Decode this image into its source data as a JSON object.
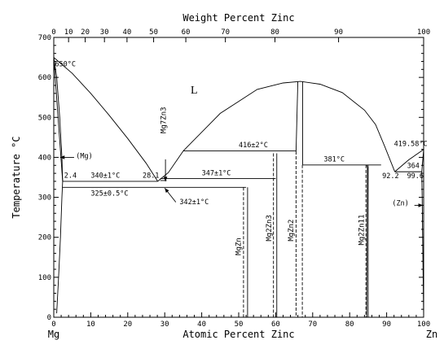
{
  "chart_data": {
    "type": "phase-diagram",
    "title_top": "Weight Percent Zinc",
    "xlabel": "Atomic Percent Zinc",
    "ylabel": "Temperature °C",
    "left_element": "Mg",
    "right_element": "Zn",
    "xlim": [
      0,
      100
    ],
    "ylim": [
      0,
      700
    ],
    "x_ticks": [
      "0",
      "10",
      "20",
      "30",
      "40",
      "50",
      "60",
      "70",
      "80",
      "90",
      "100"
    ],
    "y_ticks": [
      "0",
      "100",
      "200",
      "300",
      "400",
      "500",
      "600",
      "700"
    ],
    "top_ticks": [
      {
        "label": "0",
        "at": 0
      },
      {
        "label": "10",
        "at": 4
      },
      {
        "label": "20",
        "at": 8.5
      },
      {
        "label": "30",
        "at": 13.7
      },
      {
        "label": "40",
        "at": 19.8
      },
      {
        "label": "50",
        "at": 27
      },
      {
        "label": "60",
        "at": 35.7
      },
      {
        "label": "70",
        "at": 46.4
      },
      {
        "label": "80",
        "at": 59.8
      },
      {
        "label": "90",
        "at": 77
      },
      {
        "label": "100",
        "at": 100
      }
    ],
    "curves": [
      {
        "name": "liquidus-mg",
        "points": [
          [
            0,
            650
          ],
          [
            5,
            610
          ],
          [
            10,
            560
          ],
          [
            15,
            505
          ],
          [
            20,
            447
          ],
          [
            25,
            385
          ],
          [
            28.1,
            340
          ]
        ]
      },
      {
        "name": "liquidus-mg2zn3",
        "points": [
          [
            28.1,
            340
          ],
          [
            31,
            362
          ],
          [
            35,
            416
          ]
        ]
      },
      {
        "name": "liquidus-mgzn2",
        "points": [
          [
            35,
            416
          ],
          [
            45,
            510
          ],
          [
            55,
            570
          ],
          [
            62,
            586
          ],
          [
            66.7,
            590
          ],
          [
            72,
            583
          ],
          [
            78,
            562
          ],
          [
            84,
            518
          ],
          [
            87,
            482
          ],
          [
            89.5,
            427
          ],
          [
            92.2,
            364
          ]
        ]
      },
      {
        "name": "liquidus-zn",
        "points": [
          [
            92.2,
            364
          ],
          [
            96,
            394
          ],
          [
            100,
            419.58
          ]
        ]
      },
      {
        "name": "solvus-mg",
        "points": [
          [
            0,
            650
          ],
          [
            0.8,
            600
          ],
          [
            1.6,
            500
          ],
          [
            2.2,
            400
          ],
          [
            2.4,
            340
          ],
          [
            2.2,
            300
          ],
          [
            1.8,
            200
          ],
          [
            1.3,
            100
          ],
          [
            0.8,
            10
          ]
        ]
      },
      {
        "name": "solidus-mg",
        "points": [
          [
            0,
            650
          ],
          [
            2.4,
            340
          ]
        ]
      },
      {
        "name": "mgzn2-left",
        "points": [
          [
            66.0,
            590
          ],
          [
            65.5,
            415
          ]
        ]
      },
      {
        "name": "mgzn2-right",
        "points": [
          [
            67.3,
            590
          ],
          [
            67.3,
            381
          ]
        ]
      },
      {
        "name": "mg2zn11-solidus",
        "points": [
          [
            84.6,
            381
          ],
          [
            84.8,
            375
          ],
          [
            84.6,
            0
          ]
        ]
      },
      {
        "name": "zn-solvus",
        "points": [
          [
            100,
            419.58
          ],
          [
            99.5,
            364
          ],
          [
            99.6,
            300
          ],
          [
            99.8,
            150
          ],
          [
            100,
            0
          ]
        ]
      }
    ],
    "horizontals": [
      {
        "y": 340,
        "x1": 2.4,
        "x2": 28.1
      },
      {
        "y": 325,
        "x1": 2.4,
        "x2": 52
      },
      {
        "y": 347,
        "x1": 28.8,
        "x2": 60
      },
      {
        "y": 342,
        "x1": 28.8,
        "x2": 30.5
      },
      {
        "y": 416,
        "x1": 35,
        "x2": 65.5
      },
      {
        "y": 381,
        "x1": 67.3,
        "x2": 88.5
      },
      {
        "y": 364,
        "x1": 92.2,
        "x2": 99.6
      }
    ],
    "compound_lines": [
      {
        "x": 51.3,
        "top": 325,
        "dashed": true
      },
      {
        "x": 52.4,
        "top": 325,
        "dashed": false
      },
      {
        "x": 59.4,
        "top": 410,
        "dashed": true
      },
      {
        "x": 60.3,
        "top": 410,
        "dashed": false
      },
      {
        "x": 65.5,
        "top": 415,
        "dashed": true
      },
      {
        "x": 67.2,
        "top": 381,
        "dashed": true
      },
      {
        "x": 84.4,
        "top": 381,
        "dashed": true
      },
      {
        "x": 85.0,
        "top": 381,
        "dashed": false
      }
    ],
    "labels": [
      {
        "text": "650°C",
        "x": 0.3,
        "y": 628
      },
      {
        "text": "L",
        "x": 37,
        "y": 560
      },
      {
        "text": "2.4",
        "x": 2.8,
        "y": 349
      },
      {
        "text": "340±1°C",
        "x": 10,
        "y": 349
      },
      {
        "text": "28.1",
        "x": 24,
        "y": 349
      },
      {
        "text": "325±0.5°C",
        "x": 10,
        "y": 304
      },
      {
        "text": "347±1°C",
        "x": 40,
        "y": 355
      },
      {
        "text": "342±1°C",
        "x": 34,
        "y": 283
      },
      {
        "text": "416±2°C",
        "x": 50,
        "y": 425
      },
      {
        "text": "381°C",
        "x": 73,
        "y": 390
      },
      {
        "text": "419.58°C",
        "x": 92,
        "y": 428
      },
      {
        "text": "364",
        "x": 95.5,
        "y": 373
      },
      {
        "text": "92.2",
        "x": 88.8,
        "y": 348
      },
      {
        "text": "99.6",
        "x": 95.5,
        "y": 348
      },
      {
        "text": "(Mg)",
        "x": 6,
        "y": 398
      },
      {
        "text": "(Zn)",
        "x": 91.5,
        "y": 280
      }
    ],
    "compound_labels": [
      {
        "text": "MgZn",
        "x": 50.6,
        "y": 155
      },
      {
        "text": "Mg2Zn3",
        "x": 58.8,
        "y": 190
      },
      {
        "text": "MgZn2",
        "x": 64.8,
        "y": 190
      },
      {
        "text": "Mg2Zn11",
        "x": 83.8,
        "y": 180
      },
      {
        "text": "Mg7Zn3",
        "x": 30.3,
        "y": 460
      }
    ],
    "arrows": [
      {
        "name": "arrow-mg7zn3",
        "from": [
          30.2,
          395
        ],
        "to": [
          30.2,
          340
        ]
      },
      {
        "name": "arrow-mg",
        "from": [
          5.5,
          400
        ],
        "to": [
          1.7,
          400
        ]
      },
      {
        "name": "arrow-342",
        "from": [
          33,
          288
        ],
        "to": [
          30,
          323
        ]
      },
      {
        "name": "arrow-zn",
        "from": [
          97.5,
          280
        ],
        "to": [
          99.8,
          280
        ]
      }
    ]
  }
}
